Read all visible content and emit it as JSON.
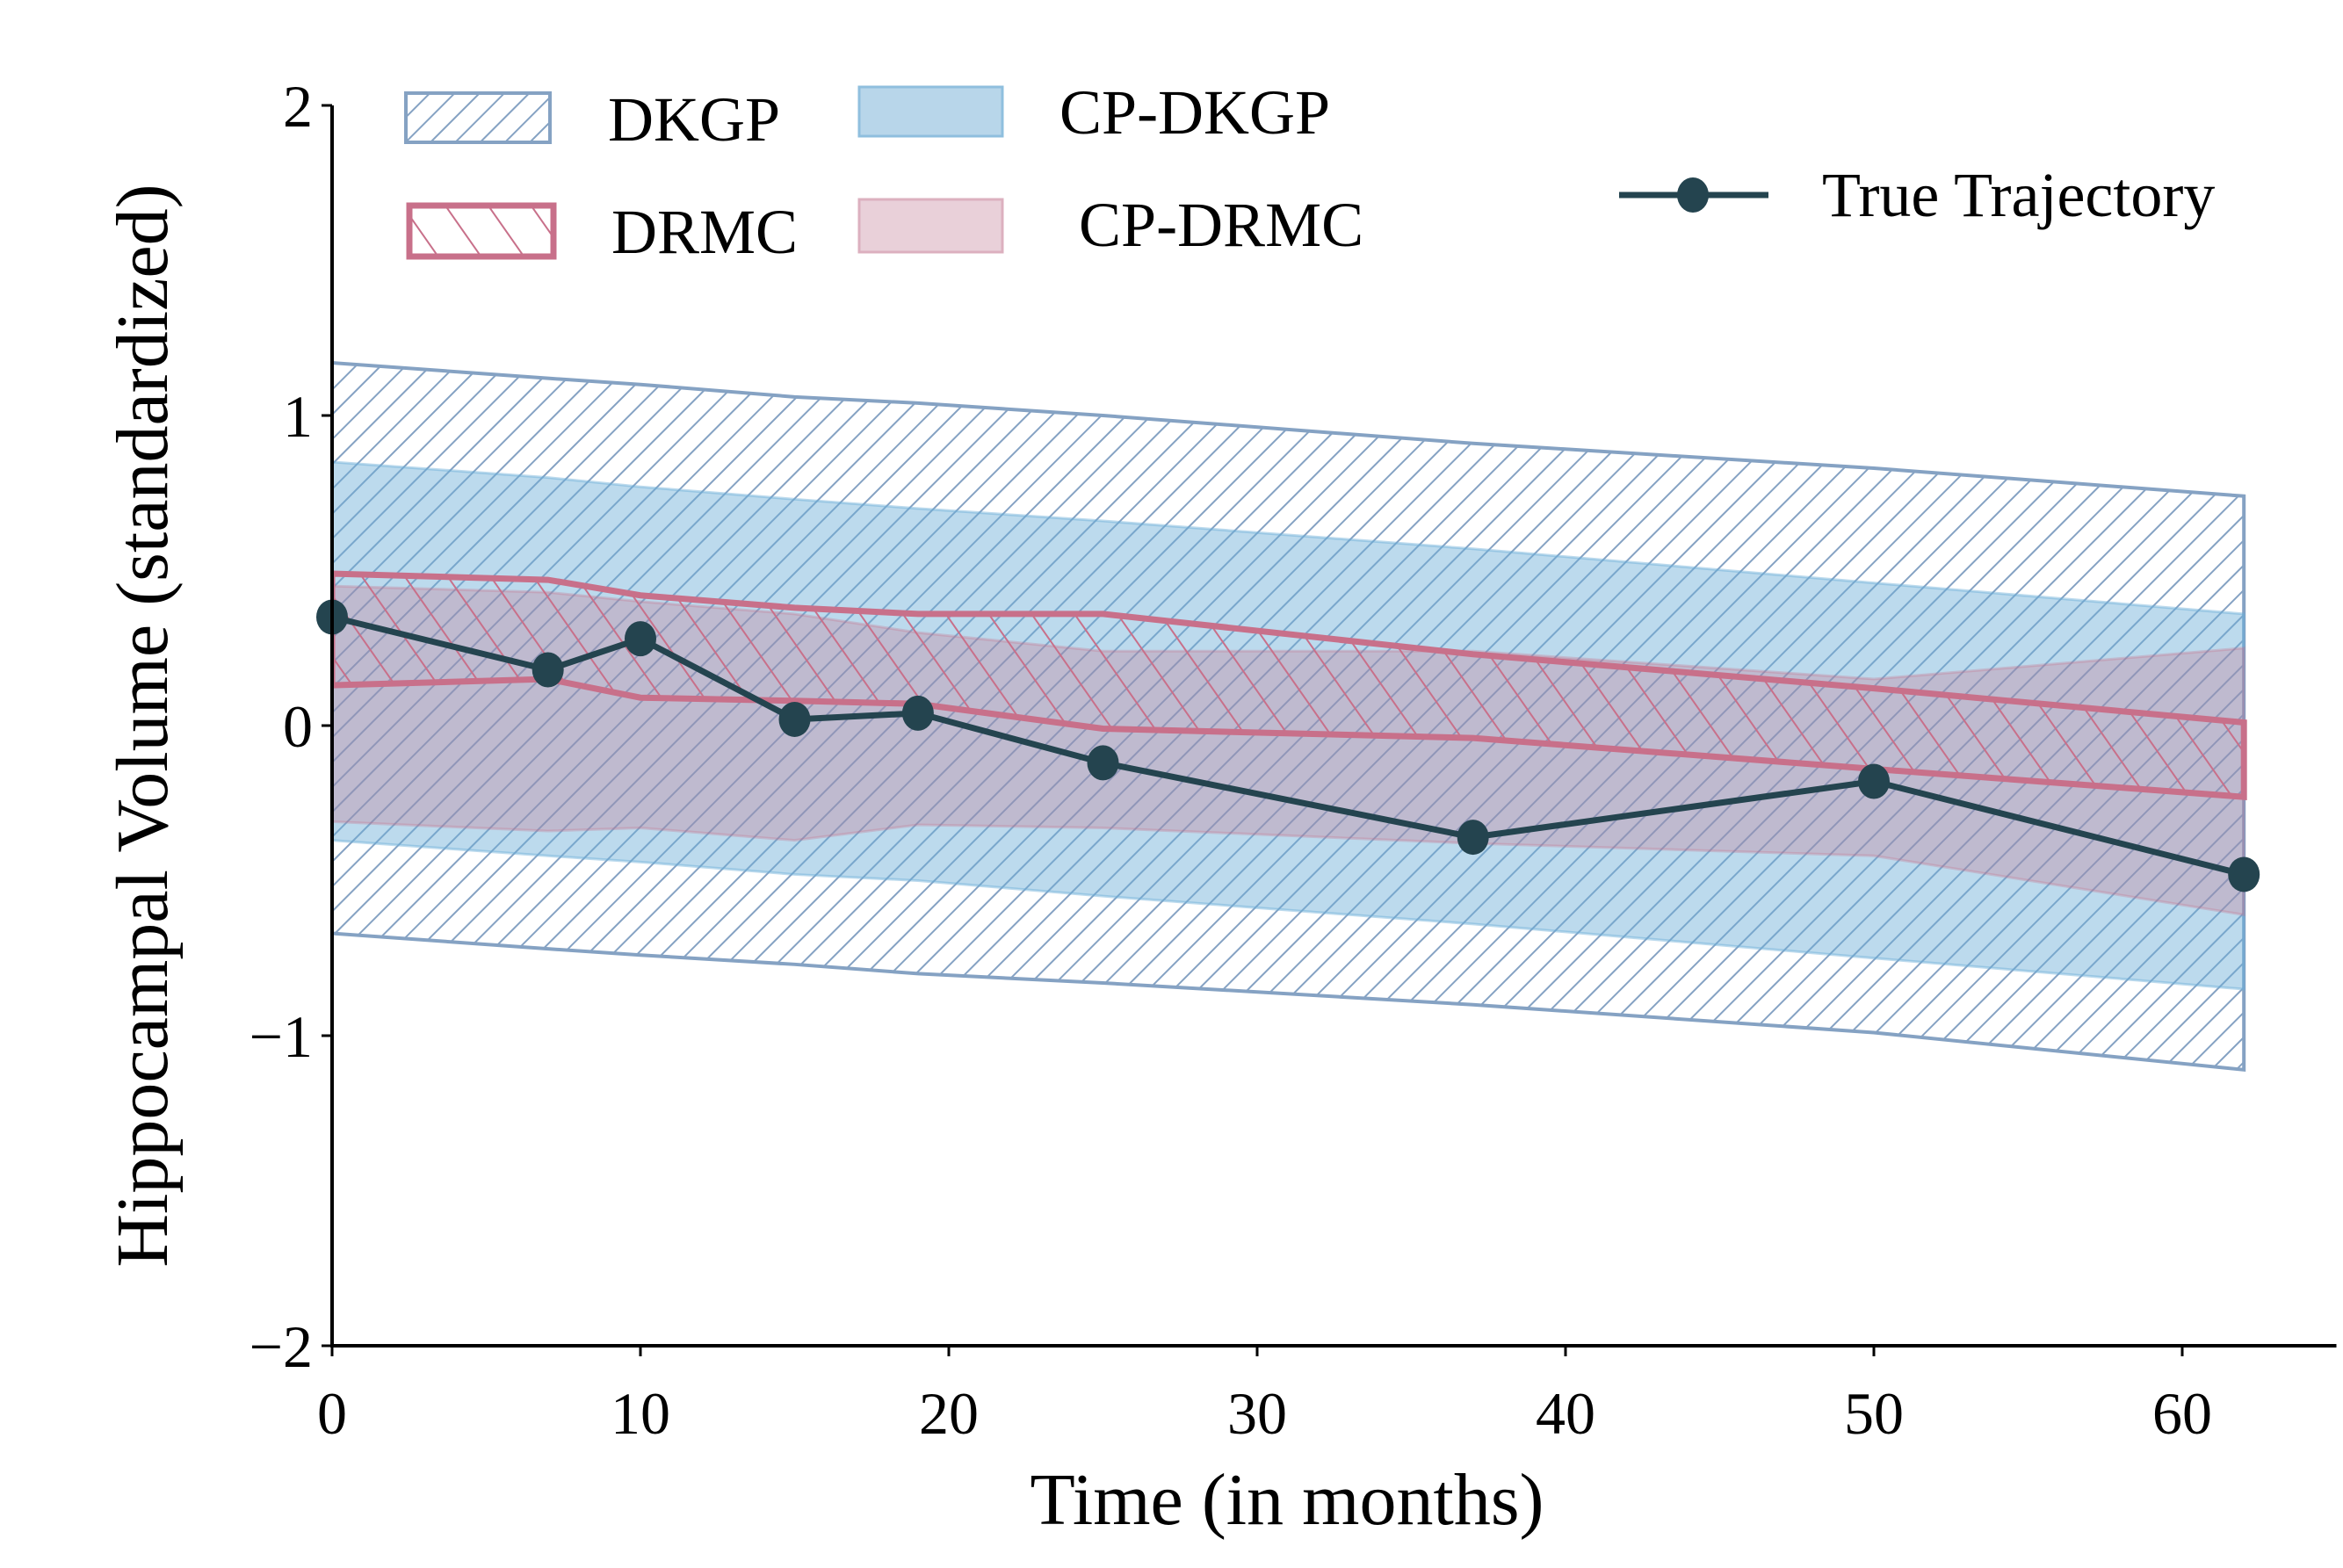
{
  "chart_data": {
    "type": "area",
    "title": "",
    "xlabel": "Time (in months)",
    "ylabel": "Hippocampal Volume (standardized)",
    "xlim": [
      0,
      65
    ],
    "ylim": [
      -2,
      2
    ],
    "xticks": [
      0,
      10,
      20,
      30,
      40,
      50,
      60
    ],
    "yticks": [
      -2,
      -1,
      0,
      1,
      2
    ],
    "ytick_labels": [
      "−2",
      "−1",
      "0",
      "1",
      "2"
    ],
    "grid": false,
    "legend_placement": "top",
    "x": [
      0,
      7,
      10,
      15,
      19,
      25,
      37,
      50,
      62
    ],
    "bands": [
      {
        "name": "DKGP",
        "style": "hatch",
        "hatch": "////",
        "color": "#85a2c3",
        "upper": [
          1.17,
          1.12,
          1.1,
          1.06,
          1.04,
          1.0,
          0.91,
          0.83,
          0.74
        ],
        "lower": [
          -0.67,
          -0.72,
          -0.74,
          -0.77,
          -0.8,
          -0.83,
          -0.9,
          -0.99,
          -1.11
        ]
      },
      {
        "name": "CP-DKGP",
        "style": "fill",
        "color": "#6baed6",
        "opacity": 0.45,
        "upper": [
          0.85,
          0.8,
          0.77,
          0.73,
          0.7,
          0.66,
          0.57,
          0.46,
          0.36
        ],
        "lower": [
          -0.37,
          -0.42,
          -0.44,
          -0.48,
          -0.5,
          -0.55,
          -0.64,
          -0.75,
          -0.85
        ]
      },
      {
        "name": "CP-DRMC",
        "style": "fill",
        "color": "#c8708a",
        "opacity": 0.3,
        "upper": [
          0.45,
          0.43,
          0.4,
          0.36,
          0.3,
          0.24,
          0.24,
          0.15,
          0.25
        ],
        "lower": [
          -0.31,
          -0.34,
          -0.33,
          -0.37,
          -0.32,
          -0.33,
          -0.38,
          -0.42,
          -0.61
        ]
      },
      {
        "name": "DRMC",
        "style": "hatch",
        "hatch": "\\\\",
        "color": "#c8708a",
        "upper": [
          0.49,
          0.47,
          0.42,
          0.38,
          0.36,
          0.36,
          0.23,
          0.12,
          0.01
        ],
        "lower": [
          0.13,
          0.15,
          0.09,
          0.08,
          0.07,
          -0.01,
          -0.04,
          -0.14,
          -0.23
        ]
      }
    ],
    "series": [
      {
        "name": "True Trajectory",
        "color": "#24444f",
        "marker": "circle",
        "values": [
          0.35,
          0.18,
          0.28,
          0.02,
          0.04,
          -0.12,
          -0.36,
          -0.18,
          -0.48
        ]
      }
    ],
    "legend": [
      "DKGP",
      "CP-DKGP",
      "DRMC",
      "CP-DRMC",
      "True Trajectory"
    ]
  }
}
